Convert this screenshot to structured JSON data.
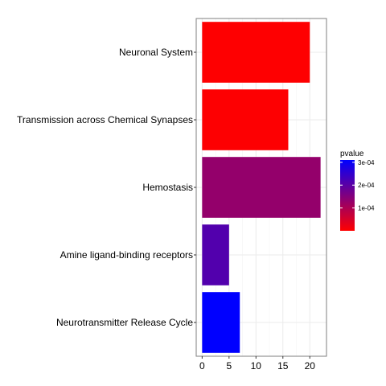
{
  "chart_data": {
    "type": "bar",
    "orientation": "horizontal",
    "categories": [
      "Neuronal System",
      "Transmission across Chemical Synapses",
      "Hemostasis",
      "Amine ligand-binding receptors",
      "Neurotransmitter Release Cycle"
    ],
    "values": [
      20,
      16,
      22,
      5,
      7
    ],
    "pvalues": [
      1e-06,
      2e-06,
      0.00013,
      0.00021,
      0.00031
    ],
    "xlim": [
      -1.1,
      23.1
    ],
    "xticks": [
      "0",
      "5",
      "10",
      "15",
      "20"
    ],
    "xtick_values": [
      0,
      5,
      10,
      15,
      20
    ],
    "grid": true,
    "legend": {
      "title": "pvalue",
      "placement": "right",
      "labels": [
        "3e-04",
        "2e-04",
        "1e-04"
      ],
      "label_values": [
        0.0003,
        0.0002,
        0.0001
      ],
      "range": [
        0,
        0.00031
      ],
      "color_low": "#FF0000",
      "color_high": "#0000FF"
    }
  }
}
